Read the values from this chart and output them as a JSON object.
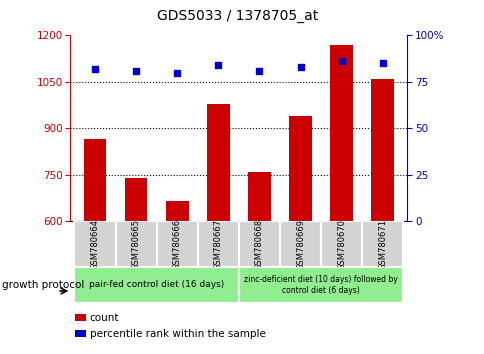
{
  "title": "GDS5033 / 1378705_at",
  "categories": [
    "GSM780664",
    "GSM780665",
    "GSM780666",
    "GSM780667",
    "GSM780668",
    "GSM780669",
    "GSM780670",
    "GSM780671"
  ],
  "bar_values": [
    865,
    740,
    665,
    980,
    760,
    940,
    1170,
    1060
  ],
  "dot_values": [
    82,
    81,
    80,
    84,
    81,
    83,
    86,
    85
  ],
  "bar_color": "#cc0000",
  "dot_color": "#0000cc",
  "ylim_left": [
    600,
    1200
  ],
  "ylim_right": [
    0,
    100
  ],
  "yticks_left": [
    600,
    750,
    900,
    1050,
    1200
  ],
  "yticks_right": [
    0,
    25,
    50,
    75,
    100
  ],
  "yticklabels_right": [
    "0",
    "25",
    "50",
    "75",
    "100%"
  ],
  "grid_values": [
    750,
    900,
    1050
  ],
  "group1_label": "pair-fed control diet (16 days)",
  "group2_label": "zinc-deficient diet (10 days) followed by\ncontrol diet (6 days)",
  "group1_indices": [
    0,
    1,
    2,
    3
  ],
  "group2_indices": [
    4,
    5,
    6,
    7
  ],
  "group_color": "#90ee90",
  "tick_bg_color": "#d3d3d3",
  "legend_count_label": "count",
  "legend_pct_label": "percentile rank within the sample",
  "growth_protocol_label": "growth protocol",
  "left_yaxis_color": "#cc0000",
  "right_yaxis_color": "#0000cc",
  "bar_bottom": 600
}
